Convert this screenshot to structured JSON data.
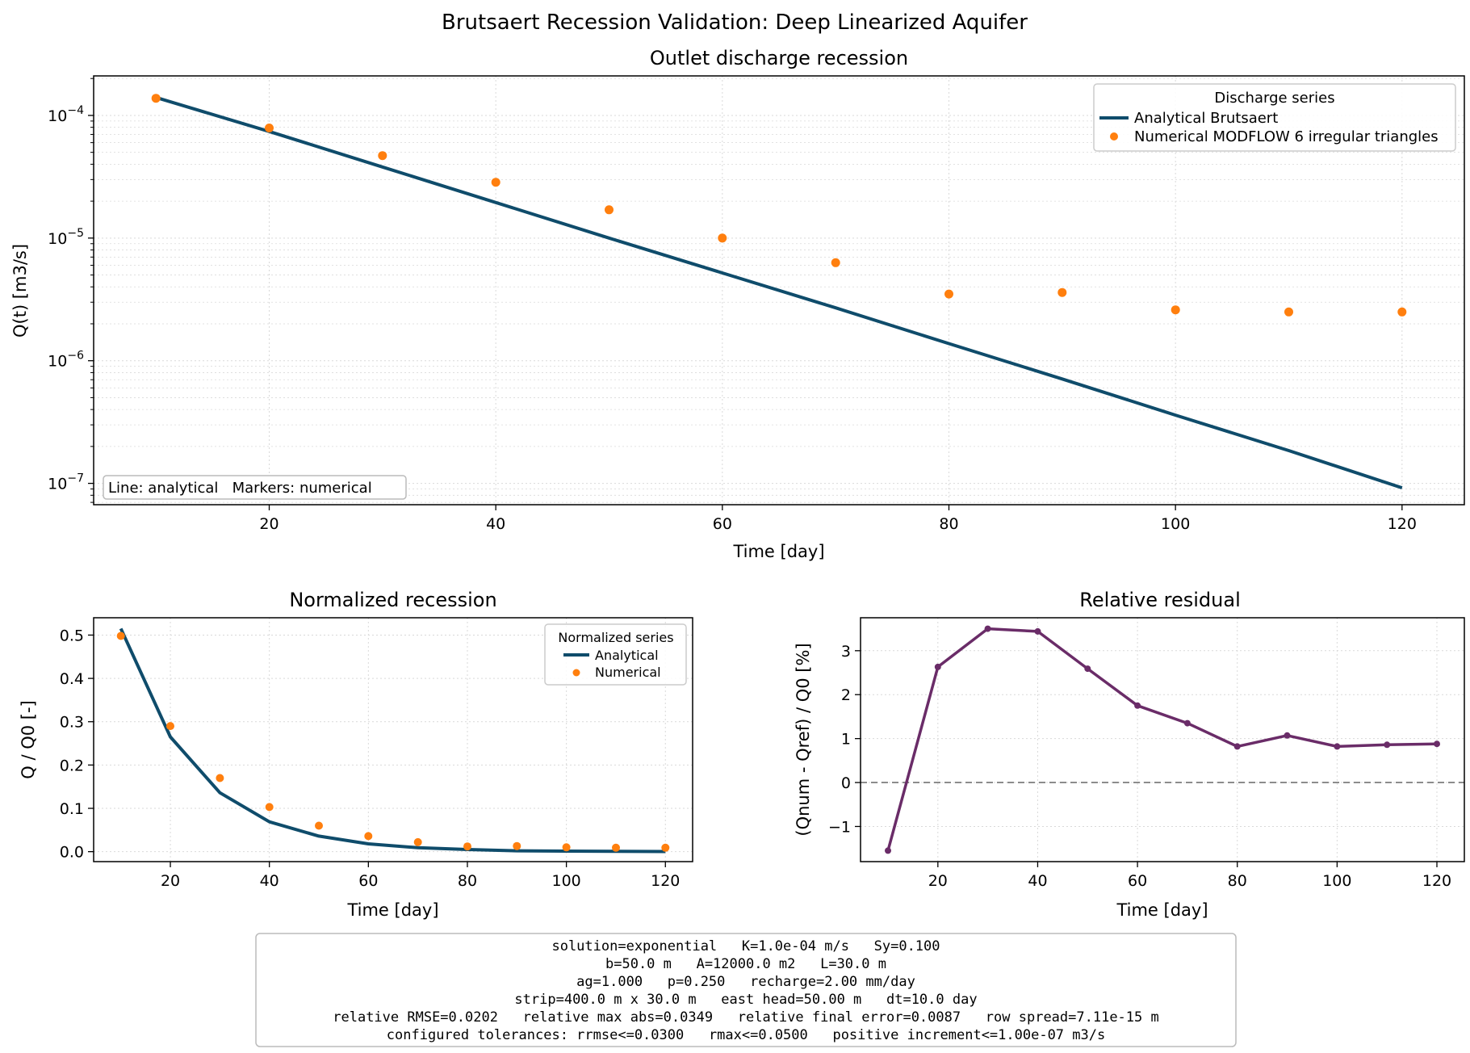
{
  "figure": {
    "title": "Brutsaert Recession Validation: Deep Linearized Aquifer"
  },
  "colors": {
    "analytical": "#0f4c6b",
    "numerical": "#ff7f0e",
    "residual": "#6a2c68",
    "grid": "#d9d9d9",
    "zero_line": "#666666"
  },
  "chart_data": [
    {
      "type": "line",
      "title": "Outlet discharge recession",
      "xlabel": "Time [day]",
      "ylabel": "Q(t) [m3/s]",
      "yscale": "log",
      "xlim": [
        4.5,
        125.5
      ],
      "ylim": [
        6.7e-08,
        0.00021
      ],
      "xticks": [
        20,
        40,
        60,
        80,
        100,
        120
      ],
      "yticks_major": [
        {
          "v": 0.0001,
          "e": "−4"
        },
        {
          "v": 1e-05,
          "e": "−5"
        },
        {
          "v": 1e-06,
          "e": "−6"
        },
        {
          "v": 1e-07,
          "e": "−7"
        }
      ],
      "grid": true,
      "legend": {
        "title": "Discharge series",
        "placement": "top-right",
        "entries": [
          "Analytical Brutsaert",
          "Numerical MODFLOW 6 irregular triangles"
        ]
      },
      "annotation": "Line: analytical   Markers: numerical",
      "series": [
        {
          "name": "Analytical Brutsaert",
          "style": "line",
          "x": [
            10,
            20,
            30,
            40,
            50,
            60,
            70,
            80,
            90,
            100,
            110,
            120
          ],
          "y": [
            0.00014,
            7.4e-05,
            3.8e-05,
            1.95e-05,
            1e-05,
            5.2e-06,
            2.7e-06,
            1.38e-06,
            7.1e-07,
            3.6e-07,
            1.85e-07,
            9.2e-08
          ]
        },
        {
          "name": "Numerical MODFLOW 6 irregular triangles",
          "style": "scatter",
          "x": [
            10,
            20,
            30,
            40,
            50,
            60,
            70,
            80,
            90,
            100,
            110,
            120
          ],
          "y": [
            0.000138,
            7.9e-05,
            4.7e-05,
            2.85e-05,
            1.7e-05,
            1e-05,
            6.3e-06,
            3.5e-06,
            3.6e-06,
            2.6e-06,
            2.5e-06,
            2.5e-06
          ]
        }
      ]
    },
    {
      "type": "line",
      "title": "Normalized recession",
      "xlabel": "Time [day]",
      "ylabel": "Q / Q0 [-]",
      "xlim": [
        4.5,
        125.5
      ],
      "ylim": [
        -0.023,
        0.54
      ],
      "xticks": [
        20,
        40,
        60,
        80,
        100,
        120
      ],
      "yticks": [
        0.0,
        0.1,
        0.2,
        0.3,
        0.4,
        0.5
      ],
      "ytick_labels": [
        "0.0",
        "0.1",
        "0.2",
        "0.3",
        "0.4",
        "0.5"
      ],
      "grid": true,
      "legend": {
        "title": "Normalized series",
        "placement": "top-right",
        "entries": [
          "Analytical",
          "Numerical"
        ]
      },
      "series": [
        {
          "name": "Analytical",
          "style": "line",
          "x": [
            10,
            20,
            30,
            40,
            50,
            60,
            70,
            80,
            90,
            100,
            110,
            120
          ],
          "y": [
            0.515,
            0.265,
            0.136,
            0.069,
            0.036,
            0.018,
            0.009,
            0.005,
            0.002,
            0.0013,
            0.0007,
            0.0003
          ]
        },
        {
          "name": "Numerical",
          "style": "scatter",
          "x": [
            10,
            20,
            30,
            40,
            50,
            60,
            70,
            80,
            90,
            100,
            110,
            120
          ],
          "y": [
            0.498,
            0.29,
            0.17,
            0.103,
            0.06,
            0.036,
            0.022,
            0.012,
            0.013,
            0.01,
            0.009,
            0.009
          ]
        }
      ]
    },
    {
      "type": "line",
      "title": "Relative residual",
      "xlabel": "Time [day]",
      "ylabel": "(Qnum - Qref) / Q0 [%]",
      "xlim": [
        4.5,
        125.5
      ],
      "ylim": [
        -1.8,
        3.75
      ],
      "xticks": [
        20,
        40,
        60,
        80,
        100,
        120
      ],
      "yticks": [
        -1,
        0,
        1,
        2,
        3
      ],
      "ytick_labels": [
        "−1",
        "0",
        "1",
        "2",
        "3"
      ],
      "grid": true,
      "reference_line": 0,
      "series": [
        {
          "style": "line-markers",
          "x": [
            10,
            20,
            30,
            40,
            50,
            60,
            70,
            80,
            90,
            100,
            110,
            120
          ],
          "y": [
            -1.55,
            2.63,
            3.5,
            3.44,
            2.59,
            1.75,
            1.35,
            0.82,
            1.07,
            0.82,
            0.86,
            0.88
          ]
        }
      ]
    }
  ],
  "summary_lines": [
    "solution=exponential   K=1.0e-04 m/s   Sy=0.100",
    "b=50.0 m   A=12000.0 m2   L=30.0 m",
    "ag=1.000   p=0.250   recharge=2.00 mm/day",
    "strip=400.0 m x 30.0 m   east head=50.00 m   dt=10.0 day",
    "relative RMSE=0.0202   relative max abs=0.0349   relative final error=0.0087   row spread=7.11e-15 m",
    "configured tolerances: rrmse<=0.0300   rmax<=0.0500   positive increment<=1.00e-07 m3/s"
  ]
}
